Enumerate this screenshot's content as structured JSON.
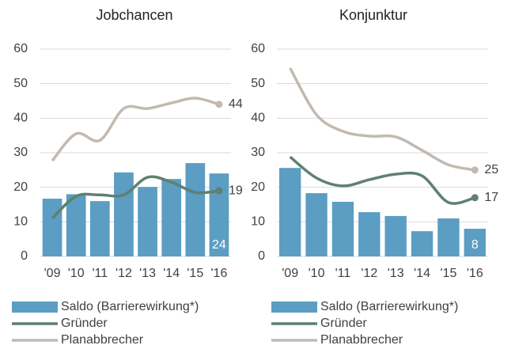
{
  "chart_data": [
    {
      "type": "bar-line",
      "title": "Jobchancen",
      "categories": [
        "'09",
        "'10",
        "'11",
        "'12",
        "'13",
        "'14",
        "'15",
        "'16"
      ],
      "series": [
        {
          "name": "Saldo (Barrierewirkung*)",
          "kind": "bar",
          "color": "#5b9dc3",
          "values": [
            16.7,
            18,
            16,
            24.3,
            20.1,
            22.4,
            27,
            24
          ]
        },
        {
          "name": "Gründer",
          "kind": "line",
          "color": "#5f8070",
          "values": [
            11,
            17.4,
            17.8,
            17.8,
            22.9,
            21.5,
            18.5,
            19
          ]
        },
        {
          "name": "Planabbrecher",
          "kind": "line",
          "color": "#c2bab2",
          "values": [
            27.7,
            35.5,
            33.6,
            42.8,
            42.8,
            44.4,
            45.8,
            44
          ]
        }
      ],
      "ylim": [
        0,
        60
      ],
      "yticks": [
        0,
        10,
        20,
        30,
        40,
        50,
        60
      ],
      "grid": true
    },
    {
      "type": "bar-line",
      "title": "Konjunktur",
      "categories": [
        "'09",
        "'10",
        "'11",
        "'12",
        "'13",
        "'14",
        "'15",
        "'16"
      ],
      "series": [
        {
          "name": "Saldo (Barrierewirkung*)",
          "kind": "bar",
          "color": "#5b9dc3",
          "values": [
            25.6,
            18.3,
            15.8,
            12.8,
            11.7,
            7.3,
            11,
            8
          ]
        },
        {
          "name": "Gründer",
          "kind": "line",
          "color": "#5f8070",
          "values": [
            28.8,
            22.7,
            20.4,
            22.2,
            23.8,
            23.3,
            15.6,
            17
          ]
        },
        {
          "name": "Planabbrecher",
          "kind": "line",
          "color": "#c2bab2",
          "values": [
            54.5,
            41,
            36.2,
            34.8,
            34.6,
            30.7,
            26.5,
            25
          ]
        }
      ],
      "ylim": [
        0,
        60
      ],
      "yticks": [
        0,
        10,
        20,
        30,
        40,
        50,
        60
      ],
      "grid": true
    }
  ]
}
